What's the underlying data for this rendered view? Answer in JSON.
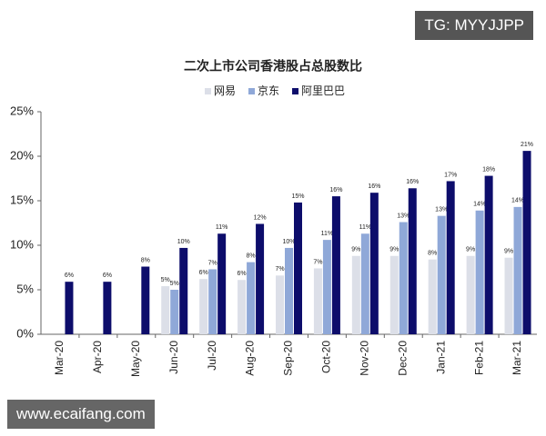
{
  "chart_data": {
    "type": "bar",
    "title": "二次上市公司香港股占总股数比",
    "categories": [
      "Mar-20",
      "Apr-20",
      "May-20",
      "Jun-20",
      "Jul-20",
      "Aug-20",
      "Sep-20",
      "Oct-20",
      "Nov-20",
      "Dec-20",
      "Jan-21",
      "Feb-21",
      "Mar-21"
    ],
    "series": [
      {
        "name": "网易",
        "color": "#dcdfe8",
        "values": [
          null,
          null,
          null,
          5.4,
          6.2,
          6.1,
          6.6,
          7.4,
          8.8,
          8.8,
          8.4,
          8.8,
          8.6
        ],
        "value_labels": [
          null,
          null,
          null,
          "5%",
          "6%",
          "6%",
          "7%",
          "7%",
          "9%",
          "9%",
          "8%",
          "9%",
          "9%"
        ]
      },
      {
        "name": "京东",
        "color": "#8fa8d8",
        "values": [
          null,
          null,
          null,
          5.0,
          7.3,
          8.1,
          9.7,
          10.6,
          11.3,
          12.6,
          13.3,
          13.9,
          14.3
        ],
        "value_labels": [
          null,
          null,
          null,
          "5%",
          "7%",
          "8%",
          "10%",
          "11%",
          "11%",
          "13%",
          "13%",
          "14%",
          "14%"
        ]
      },
      {
        "name": "阿里巴巴",
        "color": "#0d0d6b",
        "values": [
          5.9,
          5.9,
          7.6,
          9.7,
          11.3,
          12.4,
          14.8,
          15.5,
          15.9,
          16.4,
          17.2,
          17.8,
          20.6
        ],
        "value_labels": [
          "6%",
          "6%",
          "8%",
          "10%",
          "11%",
          "12%",
          "15%",
          "16%",
          "16%",
          "16%",
          "17%",
          "18%",
          "21%"
        ]
      }
    ],
    "ylim": [
      0,
      25
    ],
    "yticks": [
      {
        "value": 0,
        "label": "0%"
      },
      {
        "value": 5,
        "label": "5%"
      },
      {
        "value": 10,
        "label": "10%"
      },
      {
        "value": 15,
        "label": "15%"
      },
      {
        "value": 20,
        "label": "20%"
      },
      {
        "value": 25,
        "label": "25%"
      }
    ],
    "grid": false
  },
  "watermarks": {
    "top": "TG: MYYJJPP",
    "bottom": "www.ecaifang.com"
  }
}
